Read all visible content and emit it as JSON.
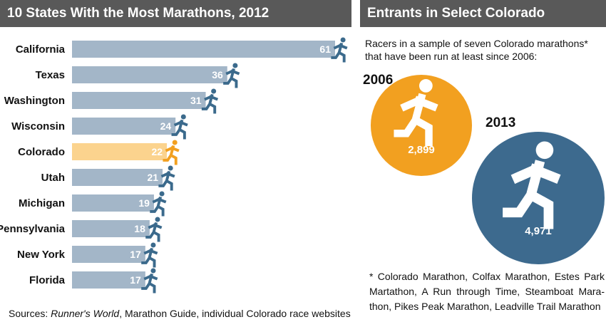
{
  "left_title": "10 States With the Most Marathons, 2012",
  "right_title": "Entrants in Select Colorado Marathons",
  "intro_text": "Racers in a sample of seven Colorado marathons* that have been run at least since 2006:",
  "footnote": "* Colorado Marathon, Colfax Marathon, Estes Park Martathon, A Run through Time, Steamboat Mara-thon, Pikes Peak Marathon, Leadville Trail Marathon",
  "sources": {
    "prefix": "Sources: ",
    "italic": "Runner's World",
    "suffix": ", Marathon Guide, individual Colorado race websites"
  },
  "colors": {
    "header_bg": "#595959",
    "bar": "#a3b6c8",
    "bar_highlight": "#fbd38e",
    "runner": "#3b6a8c",
    "runner_highlight": "#f2a020",
    "circle_2006": "#f2a020",
    "circle_2013": "#3d6a8e"
  },
  "chart_data": [
    {
      "type": "bar",
      "title": "10 States With the Most Marathons, 2012",
      "orientation": "horizontal",
      "categories": [
        "California",
        "Texas",
        "Washington",
        "Wisconsin",
        "Colorado",
        "Utah",
        "Michigan",
        "Pennsylvania",
        "New York",
        "Florida"
      ],
      "values": [
        61,
        36,
        31,
        24,
        22,
        21,
        19,
        18,
        17,
        17
      ],
      "highlight": "Colorado",
      "xlim": [
        0,
        61
      ]
    },
    {
      "type": "bubble",
      "title": "Entrants in Select Colorado Marathons",
      "categories": [
        "2006",
        "2013"
      ],
      "values": [
        2899,
        4971
      ],
      "value_labels": [
        "2,899",
        "4,971"
      ]
    }
  ]
}
